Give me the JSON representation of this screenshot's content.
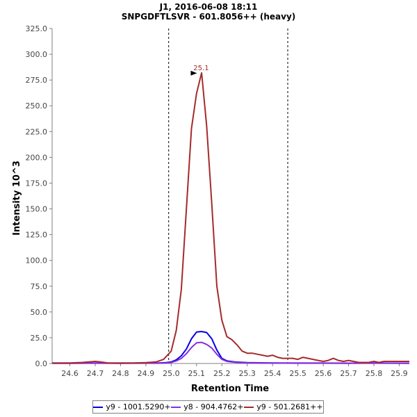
{
  "chart_data": {
    "type": "line",
    "title": "J1, 2016-06-08 18:11",
    "subtitle": "SNPGDFTLSVR - 601.8056++ (heavy)",
    "xlabel": "Retention Time",
    "ylabel": "Intensity 10^3",
    "xlim": [
      24.53,
      25.94
    ],
    "ylim": [
      0,
      325
    ],
    "x_ticks": [
      "24.6",
      "24.7",
      "24.8",
      "24.9",
      "25.0",
      "25.1",
      "25.2",
      "25.3",
      "25.4",
      "25.5",
      "25.6",
      "25.7",
      "25.8",
      "25.9"
    ],
    "y_ticks": [
      "0.0",
      "25.0",
      "50.0",
      "75.0",
      "100.0",
      "125.0",
      "150.0",
      "175.0",
      "200.0",
      "225.0",
      "250.0",
      "275.0",
      "300.0",
      "325.0"
    ],
    "boundaries": [
      24.99,
      25.46
    ],
    "peak_annotation": {
      "label": "25.1",
      "x": 25.11,
      "y": 282
    },
    "grid": false,
    "legend_position": "bottom",
    "series": [
      {
        "name": "y9 - 1001.5290+",
        "color": "#0000e6",
        "x": [
          24.53,
          24.6,
          24.7,
          24.8,
          24.9,
          24.95,
          24.98,
          25.0,
          25.02,
          25.04,
          25.06,
          25.08,
          25.1,
          25.12,
          25.14,
          25.16,
          25.18,
          25.2,
          25.22,
          25.25,
          25.3,
          25.4,
          25.5,
          25.6,
          25.7,
          25.8,
          25.94
        ],
        "values": [
          0.3,
          0.3,
          0.4,
          0.3,
          0.4,
          0.5,
          0.8,
          1.5,
          3.5,
          7.5,
          14,
          24,
          30.5,
          31,
          30,
          24,
          13,
          5,
          2.5,
          1.5,
          0.8,
          0.5,
          0.4,
          0.4,
          0.3,
          0.4,
          0.3
        ]
      },
      {
        "name": "y8 - 904.4762+",
        "color": "#8a2be2",
        "x": [
          24.53,
          24.6,
          24.7,
          24.8,
          24.9,
          24.95,
          24.98,
          25.0,
          25.02,
          25.04,
          25.06,
          25.08,
          25.1,
          25.12,
          25.14,
          25.16,
          25.18,
          25.2,
          25.22,
          25.25,
          25.3,
          25.4,
          25.5,
          25.6,
          25.7,
          25.8,
          25.94
        ],
        "values": [
          0.2,
          0.2,
          0.3,
          0.2,
          0.3,
          0.3,
          0.5,
          1,
          2.5,
          5,
          9.5,
          15.5,
          20,
          20.5,
          18.5,
          15,
          9,
          4,
          2,
          1.2,
          0.6,
          0.4,
          0.3,
          0.3,
          0.2,
          0.3,
          0.2
        ]
      },
      {
        "name": "y9 - 501.2681++",
        "color": "#a52a2a",
        "x": [
          24.53,
          24.6,
          24.65,
          24.7,
          24.72,
          24.75,
          24.8,
          24.85,
          24.9,
          24.94,
          24.97,
          25.0,
          25.02,
          25.04,
          25.06,
          25.08,
          25.1,
          25.12,
          25.14,
          25.16,
          25.18,
          25.2,
          25.22,
          25.24,
          25.26,
          25.28,
          25.3,
          25.32,
          25.34,
          25.36,
          25.38,
          25.4,
          25.42,
          25.44,
          25.46,
          25.48,
          25.5,
          25.52,
          25.54,
          25.56,
          25.58,
          25.6,
          25.62,
          25.64,
          25.66,
          25.68,
          25.7,
          25.72,
          25.74,
          25.76,
          25.78,
          25.8,
          25.82,
          25.84,
          25.86,
          25.88,
          25.9,
          25.94
        ],
        "values": [
          0.5,
          0.5,
          1,
          2,
          1.5,
          0.5,
          0.5,
          0.5,
          0.8,
          1.5,
          4,
          12,
          32,
          72,
          150,
          228,
          262,
          282,
          230,
          155,
          75,
          42,
          26,
          23,
          18,
          12,
          10,
          10,
          9,
          8,
          7,
          8,
          6,
          5,
          5,
          5,
          4,
          6,
          5,
          4,
          3,
          2,
          3,
          5,
          3,
          2,
          3,
          2,
          1,
          1,
          1,
          2,
          1,
          2,
          2,
          2,
          2,
          2
        ]
      }
    ]
  }
}
